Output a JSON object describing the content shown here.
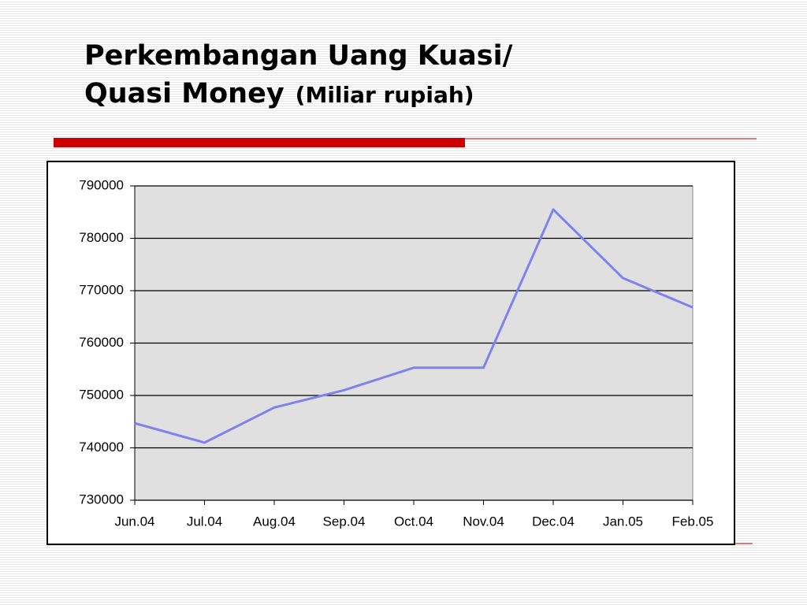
{
  "chart_data": {
    "type": "line",
    "title": "Perkembangan Uang Kuasi/",
    "subtitle": "Quasi Money",
    "unit": "(Miliar rupiah)",
    "categories": [
      "Jun.04",
      "Jul.04",
      "Aug.04",
      "Sep.04",
      "Oct.04",
      "Nov.04",
      "Dec.04",
      "Jan.05",
      "Feb.05"
    ],
    "values": [
      744700,
      741000,
      747700,
      751000,
      755300,
      755300,
      785500,
      772400,
      766800
    ],
    "color": "#8080f0",
    "ylim": [
      730000,
      790000
    ],
    "yticks": [
      730000,
      740000,
      750000,
      760000,
      770000,
      780000,
      790000
    ],
    "grid": true
  }
}
